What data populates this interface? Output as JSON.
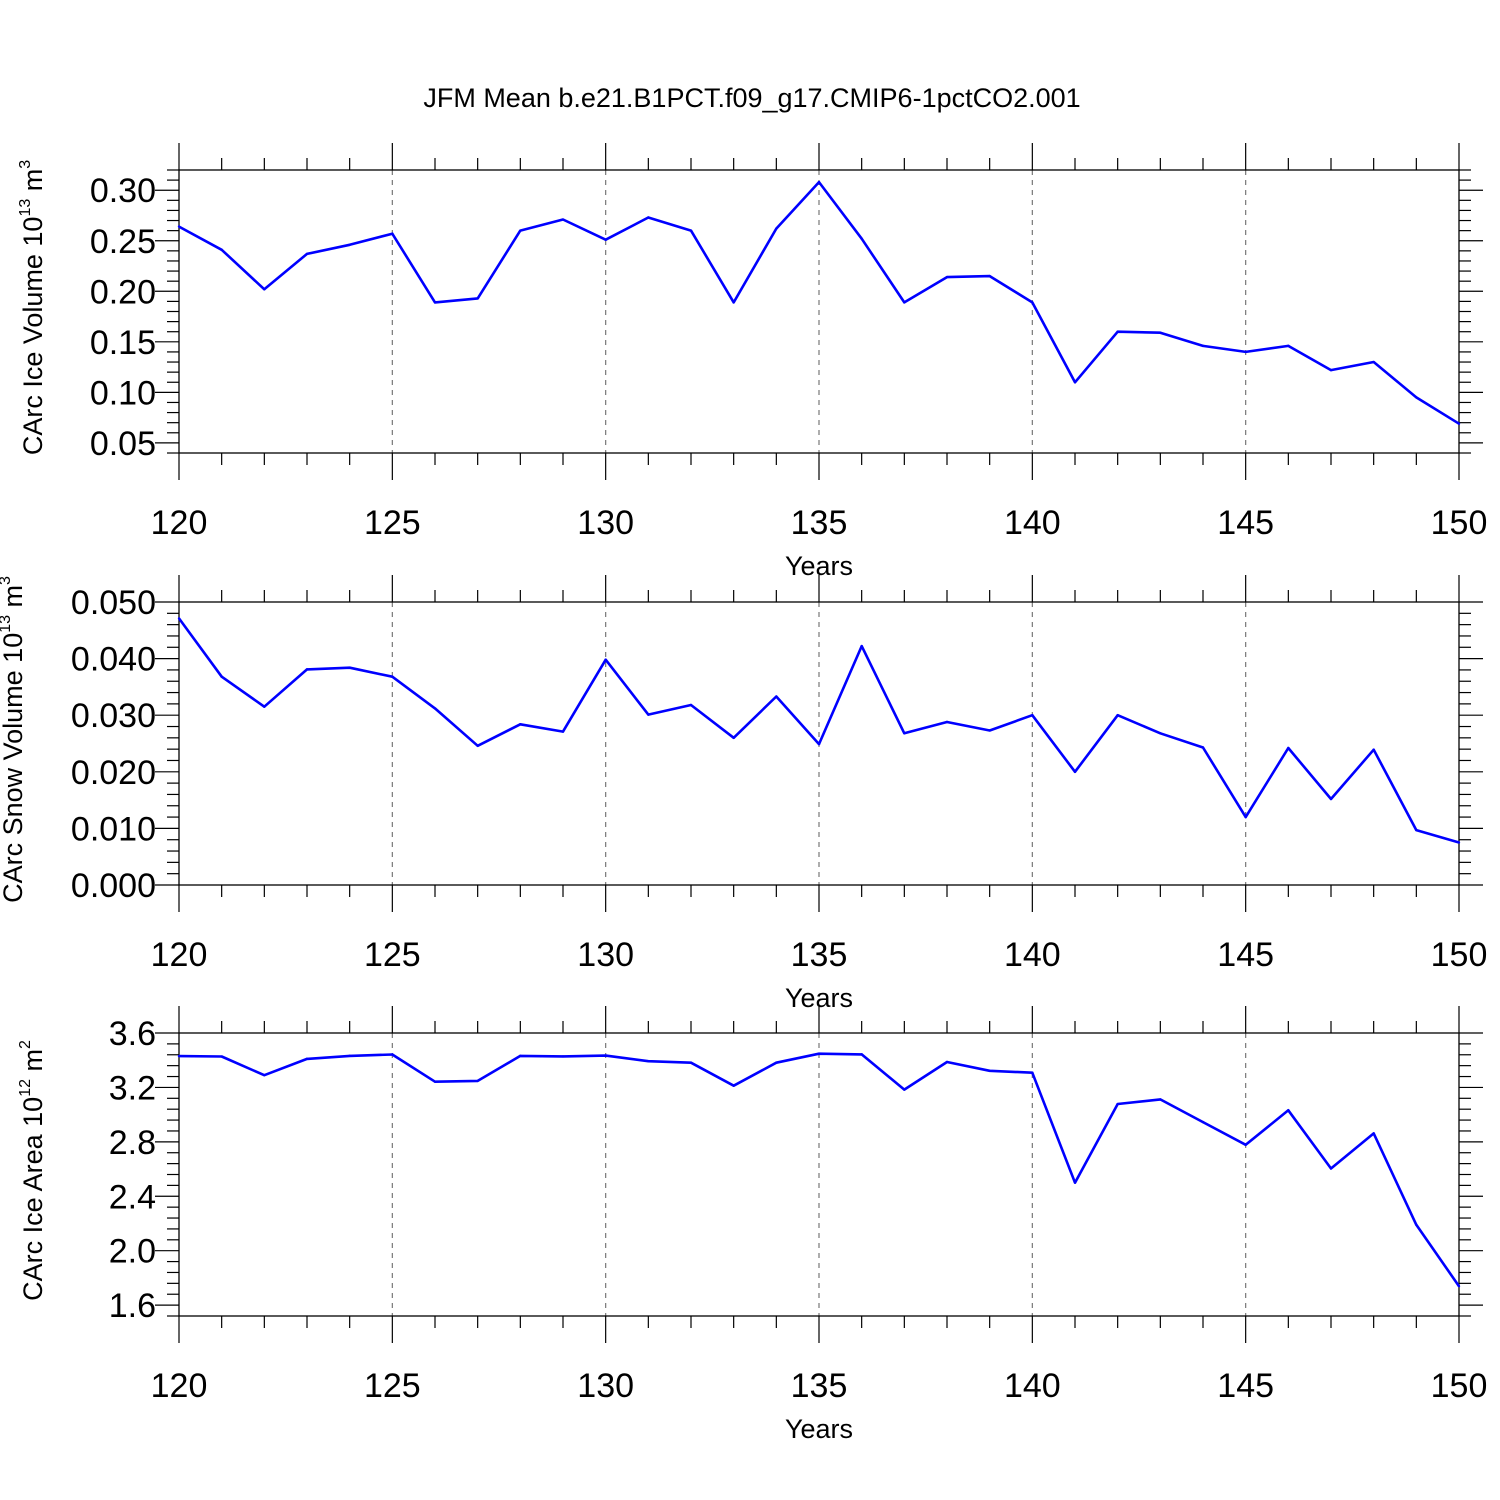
{
  "title": "JFM Mean b.e21.B1PCT.f09_g17.CMIP6-1pctCO2.001",
  "colors": {
    "series": "#0000ff",
    "grid": "#777777",
    "axes": "#000000"
  },
  "chart_data": [
    {
      "type": "line",
      "xlabel": "Years",
      "ylabel": "CArc Ice Volume 10",
      "ylabel_exp": "13",
      "ylabel_unit": " m",
      "ylabel_unit_exp": "3",
      "xlim": [
        120,
        150
      ],
      "ylim": [
        0.04,
        0.32
      ],
      "xticks": [
        120,
        125,
        130,
        135,
        140,
        145,
        150
      ],
      "yticks": [
        "0.05",
        "0.10",
        "0.15",
        "0.20",
        "0.25",
        "0.30"
      ],
      "grid": "vertical dashed at major x ticks",
      "x": [
        120,
        121,
        122,
        123,
        124,
        125,
        126,
        127,
        128,
        129,
        130,
        131,
        132,
        133,
        134,
        135,
        136,
        137,
        138,
        139,
        140,
        141,
        142,
        143,
        144,
        145,
        146,
        147,
        148,
        149,
        150
      ],
      "values": [
        0.264,
        0.241,
        0.202,
        0.237,
        0.246,
        0.257,
        0.189,
        0.193,
        0.26,
        0.271,
        0.251,
        0.273,
        0.26,
        0.189,
        0.262,
        0.308,
        0.252,
        0.189,
        0.214,
        0.215,
        0.189,
        0.11,
        0.16,
        0.159,
        0.146,
        0.14,
        0.146,
        0.122,
        0.13,
        0.095,
        0.069
      ]
    },
    {
      "type": "line",
      "xlabel": "Years",
      "ylabel": "CArc Snow Volume 10",
      "ylabel_exp": "13",
      "ylabel_unit": " m",
      "ylabel_unit_exp": "3",
      "xlim": [
        120,
        150
      ],
      "ylim": [
        0.0,
        0.05
      ],
      "xticks": [
        120,
        125,
        130,
        135,
        140,
        145,
        150
      ],
      "yticks": [
        "0.000",
        "0.010",
        "0.020",
        "0.030",
        "0.040",
        "0.050"
      ],
      "grid": "vertical dashed at major x ticks",
      "x": [
        120,
        121,
        122,
        123,
        124,
        125,
        126,
        127,
        128,
        129,
        130,
        131,
        132,
        133,
        134,
        135,
        136,
        137,
        138,
        139,
        140,
        141,
        142,
        143,
        144,
        145,
        146,
        147,
        148,
        149,
        150
      ],
      "values": [
        0.0471,
        0.0368,
        0.0315,
        0.0381,
        0.0384,
        0.0368,
        0.0312,
        0.0246,
        0.0284,
        0.0271,
        0.0398,
        0.0301,
        0.0318,
        0.026,
        0.0333,
        0.0249,
        0.0422,
        0.0268,
        0.0288,
        0.0273,
        0.03,
        0.02,
        0.03,
        0.0268,
        0.0243,
        0.012,
        0.0242,
        0.0152,
        0.0239,
        0.0097,
        0.0075
      ]
    },
    {
      "type": "line",
      "xlabel": "Years",
      "ylabel": "CArc Ice Area 10",
      "ylabel_exp": "12",
      "ylabel_unit": " m",
      "ylabel_unit_exp": "2",
      "xlim": [
        120,
        150
      ],
      "ylim": [
        1.52,
        3.6
      ],
      "xticks": [
        120,
        125,
        130,
        135,
        140,
        145,
        150
      ],
      "yticks": [
        "1.6",
        "2.0",
        "2.4",
        "2.8",
        "3.2",
        "3.6"
      ],
      "grid": "vertical dashed at major x ticks",
      "x": [
        120,
        121,
        122,
        123,
        124,
        125,
        126,
        127,
        128,
        129,
        130,
        131,
        132,
        133,
        134,
        135,
        136,
        137,
        138,
        139,
        140,
        141,
        142,
        143,
        144,
        145,
        146,
        147,
        148,
        149,
        150
      ],
      "values": [
        3.43,
        3.427,
        3.29,
        3.41,
        3.432,
        3.442,
        3.242,
        3.248,
        3.432,
        3.428,
        3.434,
        3.393,
        3.382,
        3.213,
        3.382,
        3.448,
        3.443,
        3.184,
        3.387,
        3.322,
        3.308,
        2.5,
        3.078,
        3.112,
        2.945,
        2.778,
        3.032,
        2.604,
        2.862,
        2.19,
        1.739
      ]
    }
  ]
}
